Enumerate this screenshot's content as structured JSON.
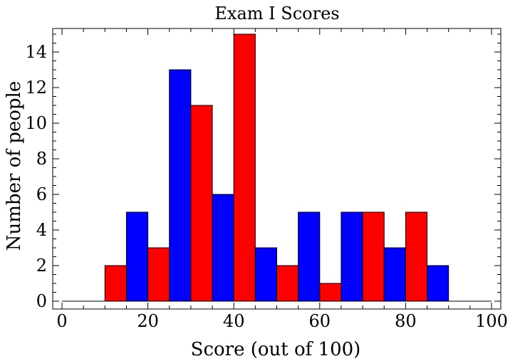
{
  "chart_data": {
    "type": "bar",
    "title": "Exam I Scores",
    "xlabel": "Score (out of 100)",
    "ylabel": "Number of people",
    "xlim": [
      0,
      100
    ],
    "ylim": [
      0,
      15
    ],
    "bin_width": 5,
    "x_ticks": [
      "0",
      "20",
      "40",
      "60",
      "80",
      "100"
    ],
    "y_ticks": [
      "0",
      "2",
      "4",
      "6",
      "8",
      "10",
      "12",
      "14"
    ],
    "grid": false,
    "legend": "none",
    "bars": [
      {
        "x0": 10,
        "x1": 15,
        "value": 2,
        "color": "#ff0000"
      },
      {
        "x0": 15,
        "x1": 20,
        "value": 5,
        "color": "#0000ff"
      },
      {
        "x0": 20,
        "x1": 25,
        "value": 3,
        "color": "#ff0000"
      },
      {
        "x0": 25,
        "x1": 30,
        "value": 13,
        "color": "#0000ff"
      },
      {
        "x0": 30,
        "x1": 35,
        "value": 11,
        "color": "#ff0000"
      },
      {
        "x0": 35,
        "x1": 40,
        "value": 6,
        "color": "#0000ff"
      },
      {
        "x0": 40,
        "x1": 45,
        "value": 15,
        "color": "#ff0000"
      },
      {
        "x0": 45,
        "x1": 50,
        "value": 3,
        "color": "#0000ff"
      },
      {
        "x0": 50,
        "x1": 55,
        "value": 2,
        "color": "#ff0000"
      },
      {
        "x0": 55,
        "x1": 60,
        "value": 5,
        "color": "#0000ff"
      },
      {
        "x0": 60,
        "x1": 65,
        "value": 1,
        "color": "#ff0000"
      },
      {
        "x0": 65,
        "x1": 70,
        "value": 5,
        "color": "#0000ff"
      },
      {
        "x0": 70,
        "x1": 75,
        "value": 5,
        "color": "#ff0000"
      },
      {
        "x0": 75,
        "x1": 80,
        "value": 3,
        "color": "#0000ff"
      },
      {
        "x0": 80,
        "x1": 85,
        "value": 5,
        "color": "#ff0000"
      },
      {
        "x0": 85,
        "x1": 90,
        "value": 2,
        "color": "#0000ff"
      }
    ],
    "baseline_segments": [
      [
        0,
        10
      ],
      [
        90,
        100
      ]
    ]
  }
}
